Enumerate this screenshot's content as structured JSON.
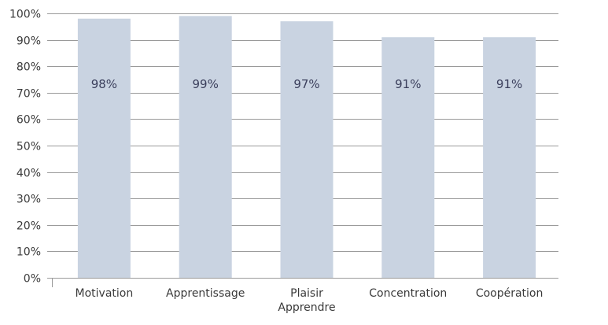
{
  "chart_data": {
    "type": "bar",
    "categories": [
      "Motivation",
      "Apprentissage",
      "Plaisir\nApprendre",
      "Concentration",
      "Coopération"
    ],
    "values": [
      98,
      99,
      97,
      91,
      91
    ],
    "data_labels": [
      "98%",
      "99%",
      "97%",
      "91%",
      "91%"
    ],
    "ylim": [
      0,
      100
    ],
    "yticks": [
      0,
      10,
      20,
      30,
      40,
      50,
      60,
      70,
      80,
      90,
      100
    ],
    "ytick_labels": [
      "0%",
      "10%",
      "20%",
      "30%",
      "40%",
      "50%",
      "60%",
      "70%",
      "80%",
      "90%",
      "100%"
    ],
    "grid": true,
    "legend": "none",
    "colors": {
      "bar": "#c9d3e1",
      "grid": "#9a9a9a",
      "data_label": "#3b3f5c",
      "axis_text": "#3a3a3a"
    }
  }
}
